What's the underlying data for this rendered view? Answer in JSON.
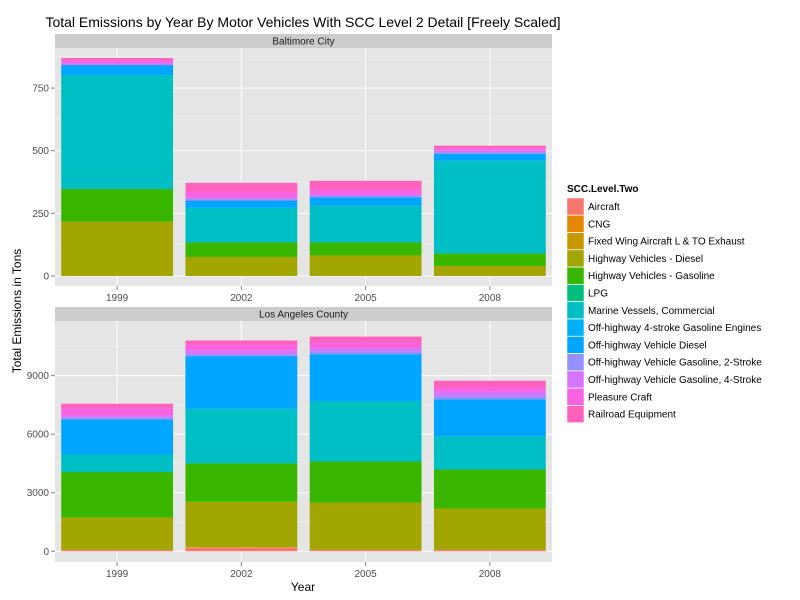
{
  "chart_data": {
    "type": "bar",
    "stacked": true,
    "title": "Total Emissions by Year By Motor Vehicles With SCC Level 2 Detail [Freely Scaled]",
    "xlabel": "Year",
    "ylabel": "Total Emissions in Tons",
    "categories": [
      "1999",
      "2002",
      "2005",
      "2008"
    ],
    "legend": {
      "title": "SCC.Level.Two",
      "placement": "right",
      "entries": [
        {
          "name": "Aircraft",
          "color": "#F8766D"
        },
        {
          "name": "CNG",
          "color": "#E58700"
        },
        {
          "name": "Fixed Wing Aircraft L & TO Exhaust",
          "color": "#C99800"
        },
        {
          "name": "Highway Vehicles - Diesel",
          "color": "#A3A500"
        },
        {
          "name": "Highway Vehicles - Gasoline",
          "color": "#39B600"
        },
        {
          "name": "LPG",
          "color": "#00BF7D"
        },
        {
          "name": "Marine Vessels, Commercial",
          "color": "#00BFC4"
        },
        {
          "name": "Off-highway 4-stroke Gasoline Engines",
          "color": "#00B0F6"
        },
        {
          "name": "Off-highway Vehicle Diesel",
          "color": "#00A5FF"
        },
        {
          "name": "Off-highway Vehicle Gasoline, 2-Stroke",
          "color": "#9590FF"
        },
        {
          "name": "Off-highway Vehicle Gasoline, 4-Stroke",
          "color": "#D575FE"
        },
        {
          "name": "Pleasure Craft",
          "color": "#F763E0"
        },
        {
          "name": "Railroad Equipment",
          "color": "#FF62BC"
        }
      ]
    },
    "grid": true,
    "panels": [
      {
        "strip": "Baltimore City",
        "ylim": [
          -40,
          910
        ],
        "yticks": [
          0,
          250,
          500,
          750
        ],
        "ytick_labels": [
          "0",
          "250",
          "500",
          "750"
        ],
        "bars": [
          {
            "category": "1999",
            "segments": [
              {
                "name": "Highway Vehicles - Diesel",
                "value": 217
              },
              {
                "name": "Highway Vehicles - Gasoline",
                "value": 130
              },
              {
                "name": "Marine Vessels, Commercial",
                "value": 455
              },
              {
                "name": "Off-highway Vehicle Diesel",
                "value": 40
              },
              {
                "name": "Off-highway Vehicle Gasoline, 4-Stroke",
                "value": 8
              },
              {
                "name": "Pleasure Craft",
                "value": 12
              },
              {
                "name": "Railroad Equipment",
                "value": 8
              }
            ]
          },
          {
            "category": "2002",
            "segments": [
              {
                "name": "Highway Vehicles - Diesel",
                "value": 76
              },
              {
                "name": "Highway Vehicles - Gasoline",
                "value": 58
              },
              {
                "name": "Marine Vessels, Commercial",
                "value": 138
              },
              {
                "name": "Off-highway Vehicle Diesel",
                "value": 29
              },
              {
                "name": "Off-highway Vehicle Gasoline, 2-Stroke",
                "value": 5
              },
              {
                "name": "Off-highway Vehicle Gasoline, 4-Stroke",
                "value": 8
              },
              {
                "name": "Pleasure Craft",
                "value": 21
              },
              {
                "name": "Railroad Equipment",
                "value": 37
              }
            ]
          },
          {
            "category": "2005",
            "segments": [
              {
                "name": "Highway Vehicles - Diesel",
                "value": 82
              },
              {
                "name": "Highway Vehicles - Gasoline",
                "value": 52
              },
              {
                "name": "Marine Vessels, Commercial",
                "value": 146
              },
              {
                "name": "Off-highway Vehicle Diesel",
                "value": 34
              },
              {
                "name": "Off-highway Vehicle Gasoline, 2-Stroke",
                "value": 5
              },
              {
                "name": "Off-highway Vehicle Gasoline, 4-Stroke",
                "value": 8
              },
              {
                "name": "Pleasure Craft",
                "value": 18
              },
              {
                "name": "Railroad Equipment",
                "value": 35
              }
            ]
          },
          {
            "category": "2008",
            "segments": [
              {
                "name": "Highway Vehicles - Diesel",
                "value": 40
              },
              {
                "name": "Highway Vehicles - Gasoline",
                "value": 50
              },
              {
                "name": "Marine Vessels, Commercial",
                "value": 370
              },
              {
                "name": "Off-highway Vehicle Diesel",
                "value": 28
              },
              {
                "name": "Off-highway Vehicle Gasoline, 2-Stroke",
                "value": 5
              },
              {
                "name": "Off-highway Vehicle Gasoline, 4-Stroke",
                "value": 7
              },
              {
                "name": "Pleasure Craft",
                "value": 10
              },
              {
                "name": "Railroad Equipment",
                "value": 10
              }
            ]
          }
        ]
      },
      {
        "strip": "Los Angeles County",
        "ylim": [
          -550,
          11800
        ],
        "yticks": [
          0,
          3000,
          6000,
          9000
        ],
        "ytick_labels": [
          "0",
          "3000",
          "6000",
          "9000"
        ],
        "bars": [
          {
            "category": "1999",
            "segments": [
              {
                "name": "Aircraft",
                "value": 60
              },
              {
                "name": "CNG",
                "value": 10
              },
              {
                "name": "Fixed Wing Aircraft L & TO Exhaust",
                "value": 20
              },
              {
                "name": "Highway Vehicles - Diesel",
                "value": 1640
              },
              {
                "name": "Highway Vehicles - Gasoline",
                "value": 2330
              },
              {
                "name": "Marine Vessels, Commercial",
                "value": 900
              },
              {
                "name": "Off-highway Vehicle Diesel",
                "value": 1800
              },
              {
                "name": "Off-highway Vehicle Gasoline, 2-Stroke",
                "value": 80
              },
              {
                "name": "Off-highway Vehicle Gasoline, 4-Stroke",
                "value": 120
              },
              {
                "name": "Pleasure Craft",
                "value": 350
              },
              {
                "name": "Railroad Equipment",
                "value": 250
              }
            ]
          },
          {
            "category": "2002",
            "segments": [
              {
                "name": "Aircraft",
                "value": 180
              },
              {
                "name": "CNG",
                "value": 10
              },
              {
                "name": "Fixed Wing Aircraft L & TO Exhaust",
                "value": 20
              },
              {
                "name": "Highway Vehicles - Diesel",
                "value": 2320
              },
              {
                "name": "Highway Vehicles - Gasoline",
                "value": 1970
              },
              {
                "name": "Marine Vessels, Commercial",
                "value": 2800
              },
              {
                "name": "Off-highway Vehicle Diesel",
                "value": 2700
              },
              {
                "name": "Off-highway Vehicle Gasoline, 2-Stroke",
                "value": 100
              },
              {
                "name": "Off-highway Vehicle Gasoline, 4-Stroke",
                "value": 200
              },
              {
                "name": "Pleasure Craft",
                "value": 300
              },
              {
                "name": "Railroad Equipment",
                "value": 200
              }
            ]
          },
          {
            "category": "2005",
            "segments": [
              {
                "name": "Aircraft",
                "value": 60
              },
              {
                "name": "CNG",
                "value": 10
              },
              {
                "name": "Fixed Wing Aircraft L & TO Exhaust",
                "value": 20
              },
              {
                "name": "Highway Vehicles - Diesel",
                "value": 2400
              },
              {
                "name": "Highway Vehicles - Gasoline",
                "value": 2110
              },
              {
                "name": "Marine Vessels, Commercial",
                "value": 3100
              },
              {
                "name": "Off-highway Vehicle Diesel",
                "value": 2400
              },
              {
                "name": "Off-highway Vehicle Gasoline, 2-Stroke",
                "value": 150
              },
              {
                "name": "Off-highway Vehicle Gasoline, 4-Stroke",
                "value": 150
              },
              {
                "name": "Pleasure Craft",
                "value": 300
              },
              {
                "name": "Railroad Equipment",
                "value": 300
              }
            ]
          },
          {
            "category": "2008",
            "segments": [
              {
                "name": "Aircraft",
                "value": 60
              },
              {
                "name": "CNG",
                "value": 10
              },
              {
                "name": "Fixed Wing Aircraft L & TO Exhaust",
                "value": 20
              },
              {
                "name": "Highway Vehicles - Diesel",
                "value": 2100
              },
              {
                "name": "Highway Vehicles - Gasoline",
                "value": 2000
              },
              {
                "name": "Marine Vessels, Commercial",
                "value": 1700
              },
              {
                "name": "Off-highway Vehicle Diesel",
                "value": 1900
              },
              {
                "name": "Off-highway Vehicle Gasoline, 2-Stroke",
                "value": 150
              },
              {
                "name": "Off-highway Vehicle Gasoline, 4-Stroke",
                "value": 250
              },
              {
                "name": "Pleasure Craft",
                "value": 200
              },
              {
                "name": "Railroad Equipment",
                "value": 350
              }
            ]
          }
        ]
      }
    ]
  }
}
